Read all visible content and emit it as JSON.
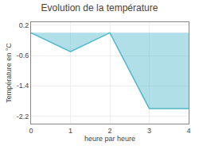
{
  "chart_data": {
    "type": "area",
    "title": "Evolution de la température",
    "xlabel": "heure par heure",
    "ylabel": "Température en °C",
    "x": [
      0,
      1,
      2,
      3,
      4
    ],
    "values": [
      0.0,
      -0.5,
      0.0,
      -2.0,
      -2.0
    ],
    "color": "#4fb8cc",
    "xlim": [
      0,
      4
    ],
    "ylim": [
      -2.4,
      0.28
    ],
    "xticks": [
      0,
      1,
      2,
      3,
      4
    ],
    "yticks": [
      0.2,
      -0.6,
      -1.4,
      -2.2
    ],
    "grid": true
  }
}
